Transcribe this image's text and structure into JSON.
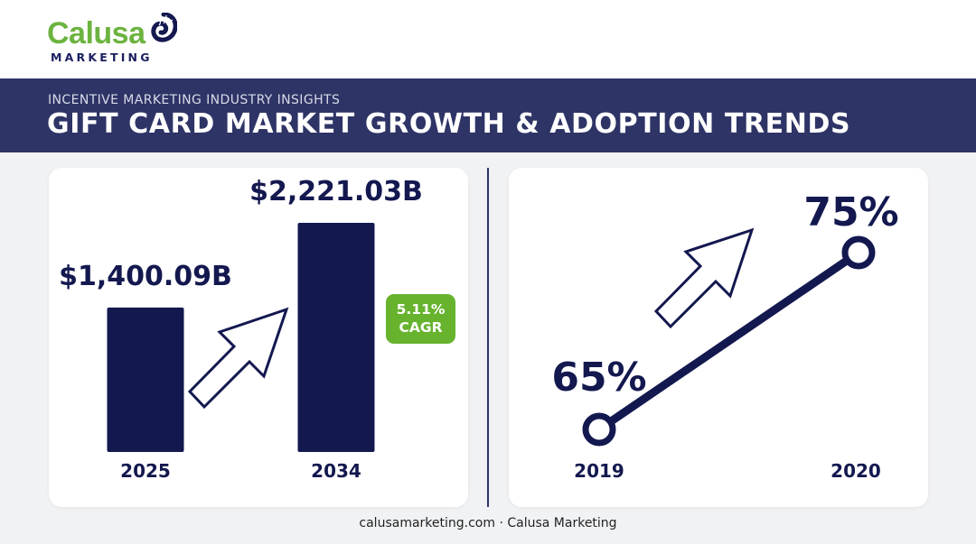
{
  "brand": {
    "name": "Calusa",
    "sub": "MARKETING"
  },
  "header": {
    "kicker": "INCENTIVE MARKETING INDUSTRY INSIGHTS",
    "title": "GIFT CARD MARKET GROWTH & ADOPTION TRENDS"
  },
  "colors": {
    "navy": "#13184f",
    "banner": "#2e3466",
    "green": "#67b32e",
    "logo_green": "#6cb33f"
  },
  "badge": {
    "line1": "5.11%",
    "line2": "CAGR"
  },
  "chart_data": [
    {
      "type": "bar",
      "categories": [
        "2025",
        "2034"
      ],
      "values": [
        1400.09,
        2221.03
      ],
      "data_labels": [
        "$1,400.09B",
        "$2,221.03B"
      ],
      "title": "",
      "xlabel": "",
      "ylabel": "",
      "ylim": [
        0,
        2221.03
      ],
      "grid": false
    },
    {
      "type": "line",
      "x": [
        "2019",
        "2020"
      ],
      "values": [
        65,
        75
      ],
      "data_labels": [
        "65%",
        "75%"
      ],
      "title": "",
      "xlabel": "",
      "ylabel": "",
      "grid": false
    }
  ],
  "footer": {
    "text": "calusamarketing.com · Calusa Marketing"
  }
}
